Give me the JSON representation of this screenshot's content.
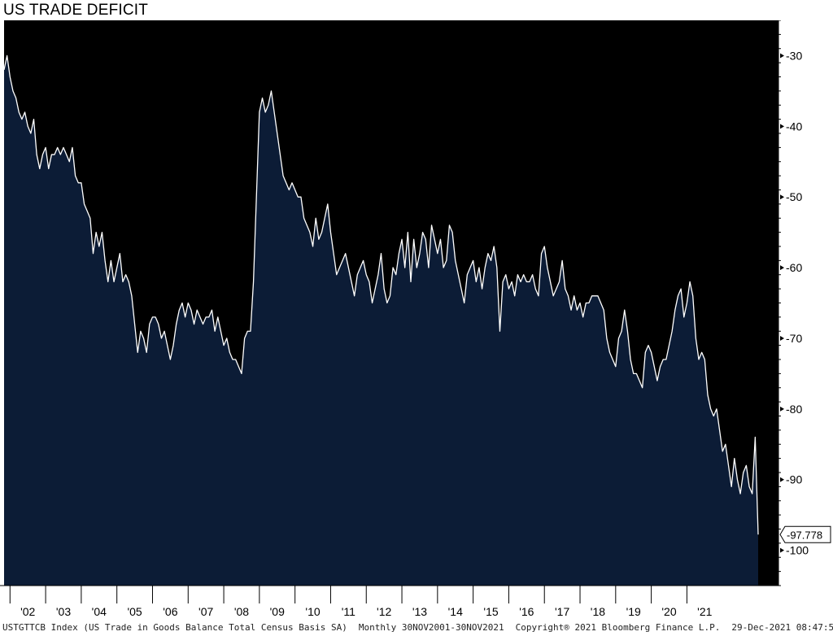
{
  "title": "US TRADE DEFICIT",
  "footer": {
    "series_desc": "USTGTTCB Index (US Trade in Goods Balance Total Census Basis SA)",
    "range": "Monthly 30NOV2001-30NOV2021",
    "copyright": "Copyright® 2021 Bloomberg Finance L.P.",
    "timestamp": "29-Dec-2021 08:47:50"
  },
  "colors": {
    "background": "#000000",
    "fill": "#0c1c36",
    "line": "#ffffff",
    "axis_text": "#000000"
  },
  "chart_data": {
    "type": "area",
    "x_ticks": [
      "'02",
      "'03",
      "'04",
      "'05",
      "'06",
      "'07",
      "'08",
      "'09",
      "'10",
      "'11",
      "'12",
      "'13",
      "'14",
      "'15",
      "'16",
      "'17",
      "'18",
      "'19",
      "'20",
      "'21"
    ],
    "y_ticks": [
      -30,
      -40,
      -50,
      -60,
      -70,
      -80,
      -90,
      -100
    ],
    "ylim": [
      -105,
      -25
    ],
    "xlim": [
      "2001-11",
      "2021-11"
    ],
    "last_value_label": "-97.778",
    "series": [
      {
        "start": "2001-11",
        "frequency": "monthly",
        "values": [
          -32,
          -30,
          -33,
          -35,
          -36,
          -38,
          -39,
          -38,
          -40,
          -41,
          -39,
          -44,
          -46,
          -44,
          -43,
          -46,
          -44,
          -44,
          -43,
          -44,
          -43,
          -44,
          -45,
          -43,
          -47,
          -48,
          -48,
          -51,
          -52,
          -53,
          -58,
          -55,
          -57,
          -55,
          -59,
          -62,
          -59,
          -62,
          -60,
          -58,
          -62,
          -61,
          -62,
          -64,
          -68,
          -72,
          -69,
          -70,
          -72,
          -68,
          -67,
          -67,
          -68,
          -70,
          -69,
          -71,
          -73,
          -71,
          -68,
          -66,
          -65,
          -67,
          -65,
          -66,
          -68,
          -66,
          -67,
          -68,
          -67,
          -67,
          -66,
          -69,
          -67,
          -69,
          -71,
          -70,
          -72,
          -73,
          -73,
          -74,
          -75,
          -70,
          -69,
          -69,
          -62,
          -50,
          -38,
          -36,
          -38,
          -37,
          -35,
          -38,
          -41,
          -44,
          -47,
          -48,
          -49,
          -48,
          -49,
          -50,
          -50,
          -53,
          -54,
          -55,
          -57,
          -53,
          -56,
          -55,
          -53,
          -51,
          -55,
          -58,
          -61,
          -60,
          -59,
          -58,
          -60,
          -62,
          -64,
          -61,
          -60,
          -59,
          -61,
          -62,
          -65,
          -63,
          -61,
          -58,
          -63,
          -65,
          -64,
          -60,
          -61,
          -58,
          -56,
          -60,
          -55,
          -62,
          -56,
          -60,
          -58,
          -55,
          -56,
          -60,
          -54,
          -56,
          -58,
          -56,
          -60,
          -59,
          -54,
          -55,
          -59,
          -61,
          -63,
          -65,
          -61,
          -60,
          -59,
          -62,
          -60,
          -63,
          -60,
          -58,
          -59,
          -57,
          -60,
          -69,
          -62,
          -61,
          -63,
          -62,
          -64,
          -61,
          -62,
          -61,
          -62,
          -62,
          -61,
          -63,
          -64,
          -58,
          -57,
          -60,
          -62,
          -64,
          -63,
          -62,
          -59,
          -63,
          -64,
          -66,
          -64,
          -66,
          -65,
          -67,
          -65,
          -65,
          -64,
          -64,
          -64,
          -65,
          -66,
          -70,
          -72,
          -73,
          -74,
          -70,
          -69,
          -66,
          -69,
          -73,
          -75,
          -75,
          -76,
          -77,
          -72,
          -71,
          -72,
          -74,
          -76,
          -74,
          -73,
          -73,
          -71,
          -69,
          -66,
          -64,
          -63,
          -67,
          -65,
          -62,
          -64,
          -70,
          -73,
          -72,
          -73,
          -78,
          -80,
          -81,
          -80,
          -83,
          -86,
          -85,
          -88,
          -91,
          -87,
          -90,
          -92,
          -89,
          -88,
          -91,
          -92,
          -84,
          -97.778
        ]
      }
    ]
  }
}
